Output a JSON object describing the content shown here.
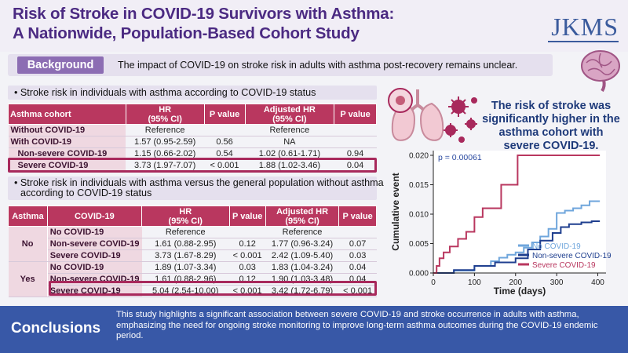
{
  "header": {
    "title_line1": "Risk of Stroke in COVID-19 Survivors with Asthma:",
    "title_line2": "A Nationwide, Population-Based Cohort Study",
    "journal": "JKMS"
  },
  "background": {
    "label": "Background",
    "text": "The impact of COVID-19 on stroke risk in adults with asthma post-recovery remains unclear."
  },
  "section1": {
    "heading": "• Stroke risk in individuals with asthma according to COVID-19 status",
    "headers": [
      "Asthma cohort",
      "HR\n(95% CI)",
      "P value",
      "Adjusted HR\n(95% CI)",
      "P value"
    ],
    "rows": [
      {
        "label": "Without COVID-19",
        "hr": "Reference",
        "p": "",
        "ahr": "Reference",
        "ap": ""
      },
      {
        "label": "With COVID-19",
        "hr": "1.57 (0.95-2.59)",
        "p": "0.56",
        "ahr": "NA",
        "ap": ""
      },
      {
        "label": "Non-severe COVID-19",
        "hr": "1.15 (0.66-2.02)",
        "p": "0.54",
        "ahr": "1.02 (0.61-1.71)",
        "ap": "0.94"
      },
      {
        "label": "Severe COVID-19",
        "hr": "3.73 (1.97-7.07)",
        "p": "< 0.001",
        "ahr": "1.88 (1.02-3.46)",
        "ap": "0.04"
      }
    ]
  },
  "section2": {
    "heading_line1": "• Stroke risk in individuals with asthma versus the general population without asthma",
    "heading_line2": "according to COVID-19 status",
    "headers": [
      "Asthma",
      "COVID-19",
      "HR\n(95% CI)",
      "P value",
      "Adjusted HR\n(95% CI)",
      "P value"
    ],
    "groups": [
      {
        "asthma": "No",
        "rows": [
          {
            "covid": "No COVID-19",
            "hr": "Reference",
            "p": "",
            "ahr": "Reference",
            "ap": ""
          },
          {
            "covid": "Non-severe COVID-19",
            "hr": "1.61 (0.88-2.95)",
            "p": "0.12",
            "ahr": "1.77 (0.96-3.24)",
            "ap": "0.07"
          },
          {
            "covid": "Severe COVID-19",
            "hr": "3.73 (1.67-8.29)",
            "p": "< 0.001",
            "ahr": "2.42 (1.09-5.40)",
            "ap": "0.03"
          }
        ]
      },
      {
        "asthma": "Yes",
        "rows": [
          {
            "covid": "No COVID-19",
            "hr": "1.89 (1.07-3.34)",
            "p": "0.03",
            "ahr": "1.83 (1.04-3.24)",
            "ap": "0.04"
          },
          {
            "covid": "Non-severe COVID-19",
            "hr": "1.61 (0.88-2.96)",
            "p": "0.12",
            "ahr": "1.90 (1.03-3.48)",
            "ap": "0.04"
          },
          {
            "covid": "Severe COVID-19",
            "hr": "5.04 (2.54-10.00)",
            "p": "< 0.001",
            "ahr": "3.42 (1.72-6.79)",
            "ap": "< 0.001"
          }
        ]
      }
    ]
  },
  "findings": {
    "text": "The risk of stroke was significantly higher in the asthma cohort with severe COVID-19."
  },
  "chart_data": {
    "type": "line",
    "title": "",
    "annotation": "p = 0.00061",
    "xlabel": "Time (days)",
    "ylabel": "Cumulative event",
    "xlim": [
      0,
      420
    ],
    "ylim": [
      0,
      0.02
    ],
    "xticks": [
      "0",
      "100",
      "200",
      "300",
      "400"
    ],
    "yticks": [
      "0.000",
      "0.005",
      "0.010",
      "0.015",
      "0.020"
    ],
    "series": [
      {
        "name": "No COVID-19",
        "color": "#6fa6dc",
        "x": [
          0,
          50,
          100,
          140,
          160,
          180,
          200,
          220,
          240,
          260,
          280,
          300,
          320,
          340,
          360,
          380,
          405
        ],
        "y": [
          0,
          0.0004,
          0.0012,
          0.002,
          0.0026,
          0.0031,
          0.0035,
          0.0043,
          0.0052,
          0.0062,
          0.0075,
          0.0102,
          0.0106,
          0.011,
          0.0115,
          0.0122,
          0.0122
        ]
      },
      {
        "name": "Non-severe COVID-19",
        "color": "#1f3f8f",
        "x": [
          0,
          50,
          100,
          150,
          200,
          230,
          260,
          290,
          310,
          330,
          360,
          385,
          405
        ],
        "y": [
          0,
          0.0005,
          0.0012,
          0.0018,
          0.0025,
          0.004,
          0.0055,
          0.0068,
          0.0078,
          0.0083,
          0.0086,
          0.0088,
          0.0088
        ]
      },
      {
        "name": "Severe COVID-19",
        "color": "#b9375f",
        "x": [
          0,
          8,
          15,
          25,
          40,
          60,
          80,
          100,
          120,
          140,
          160,
          165,
          200,
          205,
          405
        ],
        "y": [
          0,
          0.0012,
          0.0025,
          0.0035,
          0.0045,
          0.0058,
          0.007,
          0.0095,
          0.011,
          0.011,
          0.011,
          0.015,
          0.015,
          0.02,
          0.02
        ]
      }
    ]
  },
  "conclusions": {
    "label": "Conclusions",
    "text": "This study highlights a significant association between severe COVID-19 and stroke occurrence in adults with asthma, emphasizing the need for ongoing stroke monitoring to improve long-term asthma outcomes during the COVID-19 endemic period."
  }
}
